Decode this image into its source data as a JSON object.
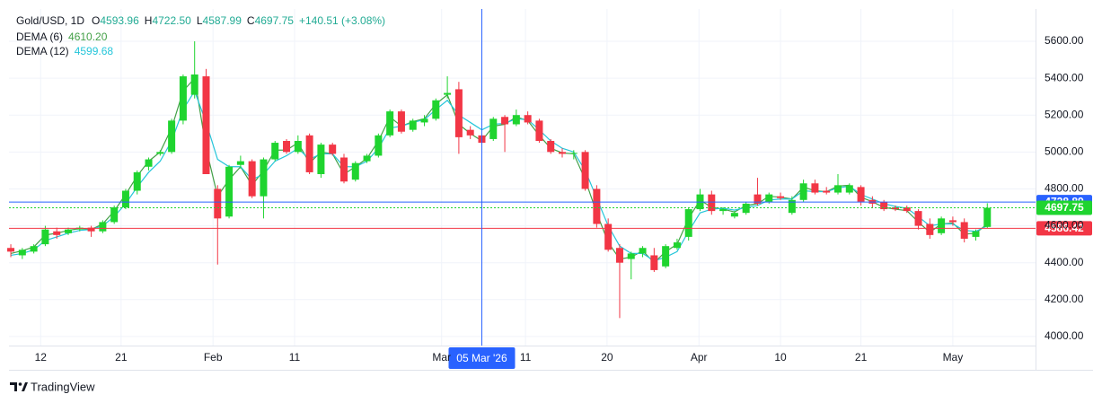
{
  "chart_data": {
    "type": "candlestick",
    "legend": {
      "symbol": "Gold/USD, 1D",
      "ohlc": [
        {
          "key": "O",
          "value": "4593.96"
        },
        {
          "key": "H",
          "value": "4722.50"
        },
        {
          "key": "L",
          "value": "4587.99"
        },
        {
          "key": "C",
          "value": "4697.75"
        }
      ],
      "change": "+140.51 (+3.08%)",
      "color": "#22ab94"
    },
    "up_color": "#1fd42f",
    "down_color": "#f23645",
    "open": [
      4480,
      4440,
      4460,
      4500,
      4570,
      4560,
      4580,
      4590,
      4570,
      4620,
      4700,
      4790,
      4920,
      4990,
      5000,
      5170,
      5310,
      5410,
      4800,
      4650,
      4930,
      4950,
      4760,
      4960,
      5060,
      5000,
      5090,
      4880,
      5040,
      4970,
      4850,
      4950,
      4980,
      5090,
      5220,
      5120,
      5160,
      5180,
      5310,
      5340,
      5120,
      5090,
      5070,
      5190,
      5150,
      5200,
      5170,
      5060,
      5000,
      4990,
      5000,
      4800,
      4610,
      4480,
      4420,
      4450,
      4440,
      4380,
      4480,
      4540,
      4690,
      4770,
      4680,
      4650,
      4670,
      4770,
      4730,
      4760,
      4670,
      4740,
      4830,
      4790,
      4780,
      4780,
      4810,
      4740,
      4730,
      4700,
      4700,
      4680,
      4610,
      4560,
      4630,
      4620,
      4540,
      4593.96
    ],
    "high": [
      4500,
      4480,
      4500,
      4600,
      4590,
      4590,
      4600,
      4600,
      4630,
      4710,
      4800,
      4900,
      4970,
      5010,
      5180,
      5420,
      5600,
      5450,
      4820,
      4930,
      4980,
      4960,
      4970,
      5060,
      5070,
      5090,
      5100,
      5050,
      5050,
      4990,
      4950,
      4990,
      5100,
      5230,
      5230,
      5180,
      5200,
      5290,
      5410,
      5380,
      5140,
      5100,
      5190,
      5200,
      5230,
      5220,
      5180,
      5070,
      5020,
      5010,
      5010,
      4820,
      4640,
      4500,
      4460,
      4490,
      4480,
      4500,
      4530,
      4700,
      4800,
      4790,
      4700,
      4680,
      4730,
      4860,
      4780,
      4780,
      4760,
      4850,
      4850,
      4810,
      4880,
      4830,
      4820,
      4760,
      4740,
      4710,
      4710,
      4690,
      4640,
      4650,
      4650,
      4640,
      4580,
      4722.5
    ],
    "low": [
      4430,
      4420,
      4450,
      4490,
      4530,
      4550,
      4570,
      4540,
      4560,
      4610,
      4690,
      4770,
      4900,
      4980,
      4990,
      5150,
      5290,
      4880,
      4390,
      4640,
      4910,
      4750,
      4640,
      4950,
      4990,
      4990,
      4880,
      4860,
      4980,
      4830,
      4840,
      4940,
      4970,
      5080,
      5100,
      5110,
      5140,
      5170,
      5290,
      4990,
      5070,
      5040,
      5060,
      5000,
      5140,
      5150,
      5050,
      4990,
      4970,
      4960,
      4790,
      4590,
      4460,
      4100,
      4310,
      4430,
      4350,
      4370,
      4470,
      4520,
      4680,
      4660,
      4660,
      4640,
      4660,
      4710,
      4720,
      4740,
      4660,
      4730,
      4770,
      4770,
      4770,
      4770,
      4710,
      4700,
      4680,
      4680,
      4670,
      4580,
      4530,
      4550,
      4600,
      4510,
      4520,
      4587.99
    ],
    "close": [
      4460,
      4470,
      4490,
      4580,
      4550,
      4580,
      4590,
      4570,
      4620,
      4700,
      4790,
      4890,
      4960,
      5000,
      5170,
      5410,
      5420,
      4880,
      4640,
      4920,
      4950,
      4760,
      4960,
      5050,
      5000,
      5060,
      4890,
      5040,
      4990,
      4840,
      4940,
      4980,
      5090,
      5220,
      5110,
      5170,
      5180,
      5280,
      5320,
      5080,
      5090,
      5050,
      5180,
      5150,
      5200,
      5160,
      5060,
      5000,
      4990,
      4995,
      4800,
      4610,
      4470,
      4400,
      4450,
      4480,
      4360,
      4490,
      4510,
      4690,
      4770,
      4680,
      4690,
      4670,
      4720,
      4720,
      4770,
      4750,
      4740,
      4830,
      4780,
      4780,
      4820,
      4820,
      4730,
      4720,
      4690,
      4690,
      4680,
      4600,
      4550,
      4640,
      4620,
      4530,
      4570,
      4697.75
    ],
    "series": [
      {
        "name": "DEMA (6)",
        "value_label": "4610.20",
        "color": "#43a047",
        "values": [
          4450,
          4465,
          4485,
          4550,
          4560,
          4575,
          4585,
          4580,
          4610,
          4680,
          4770,
          4870,
          4950,
          5000,
          5130,
          5330,
          5400,
          5020,
          4760,
          4850,
          4920,
          4820,
          4900,
          5010,
          5010,
          5050,
          4940,
          5000,
          4990,
          4880,
          4920,
          4965,
          5060,
          5190,
          5140,
          5165,
          5180,
          5260,
          5310,
          5150,
          5100,
          5060,
          5140,
          5150,
          5190,
          5170,
          5090,
          5020,
          4995,
          4990,
          4850,
          4670,
          4510,
          4420,
          4430,
          4465,
          4400,
          4460,
          4500,
          4640,
          4740,
          4700,
          4690,
          4675,
          4710,
          4720,
          4760,
          4755,
          4745,
          4810,
          4790,
          4785,
          4815,
          4820,
          4755,
          4730,
          4700,
          4690,
          4682,
          4620,
          4565,
          4610,
          4615,
          4555,
          4560,
          4610.2
        ]
      },
      {
        "name": "DEMA (12)",
        "value_label": "4599.68",
        "color": "#26c6da",
        "values": [
          4440,
          4450,
          4470,
          4520,
          4540,
          4560,
          4575,
          4580,
          4600,
          4650,
          4720,
          4810,
          4890,
          4950,
          5060,
          5230,
          5330,
          5160,
          4960,
          4920,
          4920,
          4850,
          4880,
          4950,
          4980,
          5020,
          4960,
          4990,
          4990,
          4920,
          4920,
          4950,
          5020,
          5130,
          5140,
          5160,
          5175,
          5230,
          5280,
          5200,
          5160,
          5120,
          5150,
          5155,
          5180,
          5175,
          5120,
          5060,
          5020,
          5000,
          4900,
          4750,
          4600,
          4490,
          4450,
          4450,
          4410,
          4430,
          4460,
          4570,
          4670,
          4690,
          4695,
          4685,
          4700,
          4710,
          4740,
          4745,
          4745,
          4790,
          4785,
          4785,
          4805,
          4815,
          4770,
          4745,
          4720,
          4705,
          4695,
          4650,
          4600,
          4610,
          4610,
          4575,
          4570,
          4599.68
        ]
      }
    ],
    "xlim": [
      -0.16,
      89.2
    ],
    "xticks": [
      {
        "value": 2.6,
        "label": "12"
      },
      {
        "value": 9.6,
        "label": "21"
      },
      {
        "value": 17.6,
        "label": "Feb"
      },
      {
        "value": 24.7,
        "label": "11"
      },
      {
        "value": 37.5,
        "label": "Mar"
      },
      {
        "value": 44.8,
        "label": "11"
      },
      {
        "value": 51.9,
        "label": "20"
      },
      {
        "value": 59.9,
        "label": "Apr"
      },
      {
        "value": 67,
        "label": "10"
      },
      {
        "value": 74,
        "label": "21"
      },
      {
        "value": 82,
        "label": "May"
      }
    ],
    "ylim": [
      3951,
      5775
    ],
    "yticks": [
      {
        "value": 4000,
        "label": "4000.00"
      },
      {
        "value": 4200,
        "label": "4200.00"
      },
      {
        "value": 4400,
        "label": "4400.00"
      },
      {
        "value": 4600,
        "label": "4600.00"
      },
      {
        "value": 4800,
        "label": "4800.00"
      },
      {
        "value": 5000,
        "label": "5000.00"
      },
      {
        "value": 5200,
        "label": "5200.00"
      },
      {
        "value": 5400,
        "label": "5400.00"
      },
      {
        "value": 5600,
        "label": "5600.00"
      }
    ],
    "grid": true,
    "price_lines": [
      {
        "value": 4728.89,
        "color": "#2962ff",
        "style": "solid"
      },
      {
        "value": 4697.75,
        "color": "#1fd42f",
        "style": "dotted"
      },
      {
        "value": 4586.42,
        "color": "#f23645",
        "style": "solid"
      }
    ],
    "crosshair": {
      "x": 41,
      "label": "05 Mar '26",
      "color": "#2962ff"
    },
    "brand": "TradingView"
  }
}
